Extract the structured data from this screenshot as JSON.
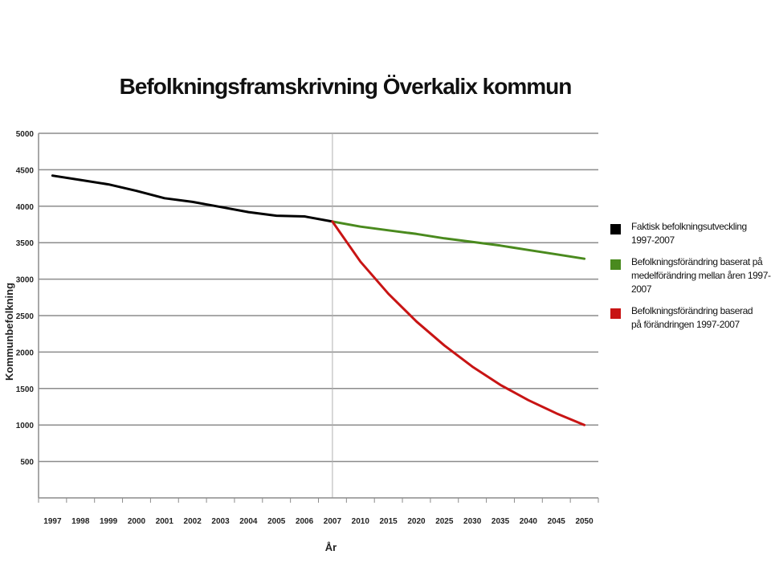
{
  "chart_data": {
    "type": "line",
    "title": "Befolkningsframskrivning Överkalix kommun",
    "xlabel": "År",
    "ylabel": "Kommunbefolkning",
    "ylim": [
      0,
      5000
    ],
    "yticks": [
      "500",
      "1000",
      "1500",
      "2000",
      "2500",
      "3000",
      "3500",
      "4000",
      "4500",
      "5000"
    ],
    "categories": [
      "1997",
      "1998",
      "1999",
      "2000",
      "2001",
      "2002",
      "2003",
      "2004",
      "2005",
      "2006",
      "2007",
      "2010",
      "2015",
      "2020",
      "2025",
      "2030",
      "2035",
      "2040",
      "2045",
      "2050"
    ],
    "grid": true,
    "legend_position": "right",
    "series": [
      {
        "name": "Faktisk befolkningsutveckling 1997-2007",
        "color": "#000000",
        "values": [
          4420,
          4360,
          4300,
          4210,
          4110,
          4060,
          3990,
          3920,
          3870,
          3860,
          3790,
          null,
          null,
          null,
          null,
          null,
          null,
          null,
          null,
          null
        ]
      },
      {
        "name": "Befolkningsförändring baserat på\nmedelförändring mellan åren 1997-2007",
        "color": "#4a8a1e",
        "values": [
          null,
          null,
          null,
          null,
          null,
          null,
          null,
          null,
          null,
          null,
          3790,
          3720,
          3670,
          3620,
          3560,
          3510,
          3460,
          3400,
          3340,
          3280
        ]
      },
      {
        "name": "Befolkningsförändring baserad\npå förändringen 1997-2007",
        "color": "#c81414",
        "values": [
          null,
          null,
          null,
          null,
          null,
          null,
          null,
          null,
          null,
          null,
          3790,
          3240,
          2800,
          2420,
          2090,
          1800,
          1550,
          1340,
          1160,
          1000
        ]
      }
    ]
  }
}
